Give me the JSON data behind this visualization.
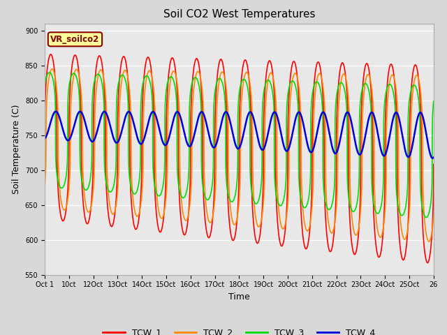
{
  "title": "Soil CO2 West Temperatures",
  "xlabel": "Time",
  "ylabel": "Soil Temperature (C)",
  "ylim": [
    550,
    910
  ],
  "yticks": [
    550,
    600,
    650,
    700,
    750,
    800,
    850,
    900
  ],
  "annotation": "VR_soilco2",
  "tick_labels": [
    "Oct 1",
    "10ct",
    "12Oct",
    "13Oct",
    "14Oct",
    "15Oct",
    "16Oct",
    "17Oct",
    "18Oct",
    "19Oct",
    "20Oct",
    "21Oct",
    "22Oct",
    "23Oct",
    "24Oct",
    "25Oct",
    "26"
  ],
  "legend_labels": [
    "TCW_1",
    "TCW_2",
    "TCW_3",
    "TCW_4"
  ],
  "line_colors": [
    "#ff0000",
    "#ff8800",
    "#00dd00",
    "#0000dd"
  ],
  "fig_bg_color": "#d8d8d8",
  "plot_bg_color": "#e8e8e8",
  "title_fontsize": 11,
  "axis_label_fontsize": 9,
  "tick_fontsize": 7,
  "legend_fontsize": 9,
  "n_cycles": 16,
  "n_pts": 3200,
  "tcw1_mean": 748,
  "tcw1_mean_slope": -2.5,
  "tcw1_amp": 118,
  "tcw1_amp_slope": 1.5,
  "tcw1_phase": 0.0,
  "tcw2_mean": 745,
  "tcw2_mean_slope": -1.8,
  "tcw2_amp": 100,
  "tcw2_amp_slope": 1.2,
  "tcw2_phase": 0.35,
  "tcw3_mean": 758,
  "tcw3_mean_slope": -2.0,
  "tcw3_amp": 82,
  "tcw3_amp_slope": 0.8,
  "tcw3_phase": -0.35,
  "tcw4_mean": 764,
  "tcw4_mean_slope": -0.9,
  "tcw4_amp": 20,
  "tcw4_amp_slope": 0.8,
  "tcw4_phase": 1.3
}
